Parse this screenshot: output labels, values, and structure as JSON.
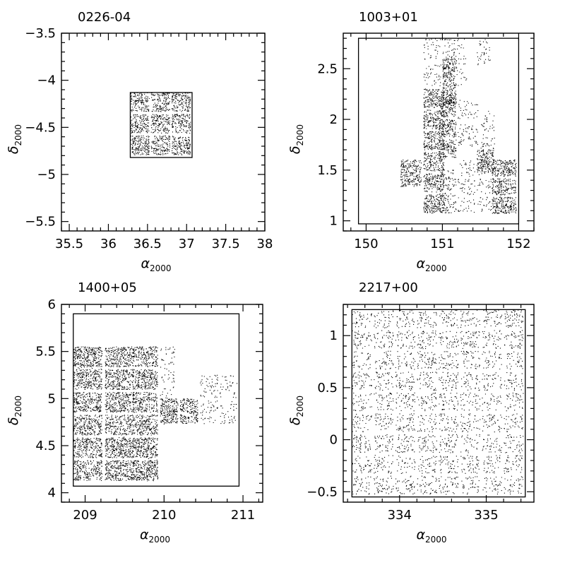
{
  "chart_data": [
    {
      "type": "scatter",
      "title": "0226-04",
      "xlabel": "α2000",
      "ylabel": "δ2000",
      "xlim": [
        35.4,
        38.0
      ],
      "ylim": [
        -5.6,
        -3.5
      ],
      "xticks": [
        "35.5",
        "36",
        "36.5",
        "37",
        "37.5",
        "38"
      ],
      "yticks": [
        "-5.5",
        "-5",
        "-4.5",
        "-4",
        "-3.5"
      ],
      "survey_boundary": {
        "ra": [
          36.28,
          37.07
        ],
        "dec": [
          -4.82,
          -4.13
        ]
      },
      "fields": [
        {
          "ra": [
            36.28,
            37.07
          ],
          "dec": [
            -4.82,
            -4.13
          ],
          "density": "dense"
        }
      ]
    },
    {
      "type": "scatter",
      "title": "1003+01",
      "xlabel": "α2000",
      "ylabel": "δ2000",
      "xlim": [
        149.7,
        152.2
      ],
      "ylim": [
        0.9,
        2.85
      ],
      "xticks": [
        "150",
        "151",
        "152"
      ],
      "yticks": [
        "1",
        "1.5",
        "2",
        "2.5"
      ],
      "survey_boundary": {
        "ra": [
          149.9,
          152.0
        ],
        "dec": [
          0.97,
          2.8
        ]
      },
      "fields": [
        {
          "ra": [
            150.45,
            150.75
          ],
          "dec": [
            1.3,
            1.6
          ],
          "density": "dense"
        },
        {
          "ra": [
            150.75,
            151.05
          ],
          "dec": [
            1.05,
            2.3
          ],
          "density": "dense"
        },
        {
          "ra": [
            150.95,
            151.2
          ],
          "dec": [
            1.6,
            2.2
          ],
          "density": "dense"
        },
        {
          "ra": [
            150.95,
            151.2
          ],
          "dec": [
            1.05,
            1.5
          ],
          "density": "medium"
        },
        {
          "ra": [
            150.75,
            151.0
          ],
          "dec": [
            2.3,
            2.8
          ],
          "density": "light"
        },
        {
          "ra": [
            151.0,
            151.35
          ],
          "dec": [
            2.3,
            2.8
          ],
          "density": "light"
        },
        {
          "ra": [
            151.0,
            151.2
          ],
          "dec": [
            2.1,
            2.6
          ],
          "density": "dense"
        },
        {
          "ra": [
            151.2,
            151.45
          ],
          "dec": [
            1.05,
            1.6
          ],
          "density": "light"
        },
        {
          "ra": [
            151.2,
            151.5
          ],
          "dec": [
            1.7,
            2.2
          ],
          "density": "light"
        },
        {
          "ra": [
            151.45,
            151.65
          ],
          "dec": [
            2.5,
            2.8
          ],
          "density": "light"
        },
        {
          "ra": [
            151.5,
            151.7
          ],
          "dec": [
            1.6,
            2.1
          ],
          "density": "light"
        },
        {
          "ra": [
            151.45,
            151.75
          ],
          "dec": [
            1.05,
            1.6
          ],
          "density": "light"
        },
        {
          "ra": [
            151.45,
            151.7
          ],
          "dec": [
            1.45,
            1.7
          ],
          "density": "dense"
        },
        {
          "ra": [
            151.65,
            152.0
          ],
          "dec": [
            1.05,
            1.6
          ],
          "density": "dense"
        }
      ]
    },
    {
      "type": "scatter",
      "title": "1400+05",
      "xlabel": "α2000",
      "ylabel": "δ2000",
      "xlim": [
        208.7,
        211.25
      ],
      "ylim": [
        3.9,
        6.0
      ],
      "xticks": [
        "209",
        "210",
        "211"
      ],
      "yticks": [
        "4",
        "4.5",
        "5",
        "5.5",
        "6"
      ],
      "survey_boundary": {
        "ra": [
          208.85,
          210.95
        ],
        "dec": [
          4.07,
          5.9
        ]
      },
      "fields": [
        {
          "ra": [
            208.85,
            209.25
          ],
          "dec": [
            4.1,
            5.55
          ],
          "density": "dense"
        },
        {
          "ra": [
            208.85,
            209.25
          ],
          "dec": [
            5.25,
            5.55
          ],
          "density": "light"
        },
        {
          "ra": [
            209.25,
            209.65
          ],
          "dec": [
            4.1,
            5.55
          ],
          "density": "dense"
        },
        {
          "ra": [
            209.3,
            209.6
          ],
          "dec": [
            4.4,
            4.6
          ],
          "density": "light"
        },
        {
          "ra": [
            209.6,
            209.95
          ],
          "dec": [
            4.1,
            5.55
          ],
          "density": "dense"
        },
        {
          "ra": [
            209.65,
            209.95
          ],
          "dec": [
            4.1,
            4.5
          ],
          "density": "light"
        },
        {
          "ra": [
            209.95,
            210.15
          ],
          "dec": [
            4.7,
            5.55
          ],
          "density": "light"
        },
        {
          "ra": [
            209.95,
            210.2
          ],
          "dec": [
            4.7,
            5.0
          ],
          "density": "dense"
        },
        {
          "ra": [
            210.2,
            210.45
          ],
          "dec": [
            4.7,
            5.0
          ],
          "density": "dense"
        },
        {
          "ra": [
            210.45,
            210.95
          ],
          "dec": [
            4.7,
            5.25
          ],
          "density": "light"
        }
      ]
    },
    {
      "type": "scatter",
      "title": "2217+00",
      "xlabel": "α2000",
      "ylabel": "δ2000",
      "xlim": [
        333.35,
        335.55
      ],
      "ylim": [
        -0.6,
        1.3
      ],
      "xticks": [
        "334",
        "335"
      ],
      "yticks": [
        "-0.5",
        "0",
        "0.5",
        "1"
      ],
      "survey_boundary": {
        "ra": [
          333.45,
          335.45
        ],
        "dec": [
          -0.55,
          1.25
        ]
      },
      "fields": [
        {
          "ra": [
            333.45,
            335.45
          ],
          "dec": [
            -0.55,
            1.25
          ],
          "density": "dense"
        }
      ]
    }
  ]
}
